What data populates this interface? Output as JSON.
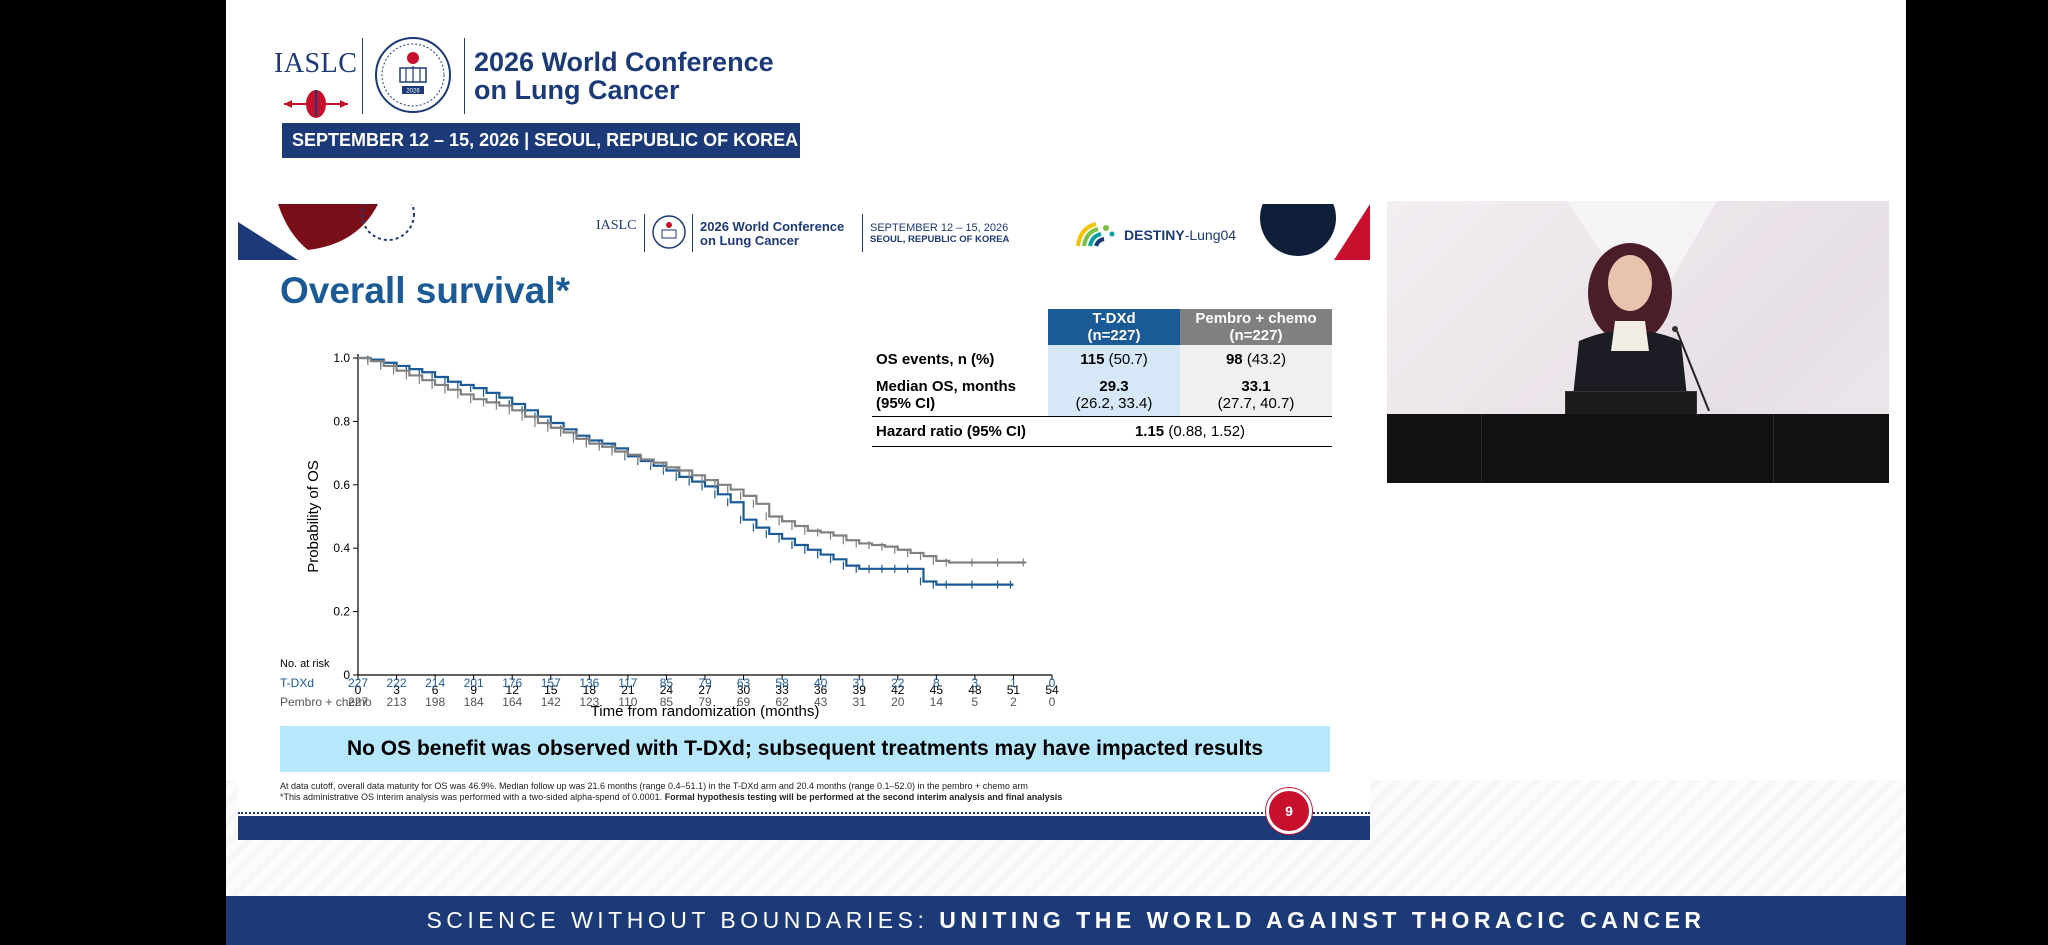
{
  "conference": {
    "org": "IASLC",
    "title": "2026 World Conference on Lung Cancer",
    "title_line1": "2026 World Conference",
    "title_line2": "on Lung Cancer",
    "dates": "SEPTEMBER 12 – 15, 2026  |  SEOUL, REPUBLIC OF KOREA",
    "seal_year": "2026"
  },
  "slide": {
    "header": {
      "org": "IASLC",
      "title_line1": "2026 World Conference",
      "title_line2": "on Lung Cancer",
      "dates_line1": "SEPTEMBER 12 – 15, 2026",
      "dates_line2": "SEOUL, REPUBLIC OF KOREA",
      "trial_bold": "DESTINY",
      "trial_rest": "-Lung04"
    },
    "title": "Overall survival*",
    "table": {
      "col_tdxd": "T-DXd",
      "col_tdxd_n": "(n=227)",
      "col_pembro": "Pembro + chemo",
      "col_pembro_n": "(n=227)",
      "rows": [
        {
          "label": "OS events, n (%)",
          "tdxd_bold": "115",
          "tdxd_rest": " (50.7)",
          "pembro_bold": "98",
          "pembro_rest": " (43.2)"
        },
        {
          "label1": "Median OS, months",
          "label2": "(95% CI)",
          "tdxd_bold": "29.3",
          "tdxd_rest": "(26.2, 33.4)",
          "pembro_bold": "33.1",
          "pembro_rest": "(27.7, 40.7)"
        }
      ],
      "hr_label": "Hazard ratio (95% CI)",
      "hr_bold": "1.15",
      "hr_rest": " (0.88, 1.52)"
    },
    "at_risk": {
      "title": "No. at risk",
      "tdxd_label": "T-DXd",
      "pembro_label": "Pembro + chemo",
      "tdxd": [
        "227",
        "222",
        "214",
        "201",
        "176",
        "157",
        "136",
        "117",
        "85",
        "79",
        "63",
        "58",
        "40",
        "31",
        "22",
        "8",
        "3",
        "1",
        "0"
      ],
      "pembro": [
        "227",
        "213",
        "198",
        "184",
        "164",
        "142",
        "123",
        "110",
        "85",
        "79",
        "69",
        "62",
        "43",
        "31",
        "20",
        "14",
        "5",
        "2",
        "0"
      ]
    },
    "banner": "No OS benefit was observed with T-DXd; subsequent treatments may have impacted results",
    "footnote1": "At data cutoff, overall data maturity for OS was 46.9%. Median follow up was 21.6 months (range 0.4–51.1) in the T-DXd arm and 20.4 months (range 0.1–52.0) in the pembro + chemo arm",
    "footnote2_a": "*This administrative OS interim analysis was performed with a two-sided alpha-spend of 0.0001. ",
    "footnote2_b": "Formal hypothesis testing will be performed at the second interim analysis and final analysis",
    "page_number": "9"
  },
  "tagline_light": "SCIENCE WITHOUT BOUNDARIES: ",
  "tagline_bold": "UNITING THE WORLD AGAINST THORACIC CANCER",
  "colors": {
    "navy": "#1d3a78",
    "tdxd_blue": "#1a5a96",
    "pembro_gray": "#808080",
    "banner_bg": "#b7e7fb",
    "accent_red": "#c8102e"
  },
  "chart_data": {
    "type": "line",
    "title": "",
    "xlabel": "Time from randomization (months)",
    "ylabel": "Probability of OS",
    "xlim": [
      0,
      54
    ],
    "ylim": [
      0,
      1.0
    ],
    "x_ticks": [
      "0",
      "3",
      "6",
      "9",
      "12",
      "15",
      "18",
      "21",
      "24",
      "27",
      "30",
      "33",
      "36",
      "39",
      "42",
      "45",
      "48",
      "51",
      "54"
    ],
    "y_ticks": [
      "0",
      "0.2",
      "0.4",
      "0.6",
      "0.8",
      "1.0"
    ],
    "grid": false,
    "step": true,
    "series": [
      {
        "name": "T-DXd",
        "color": "#1a5a96",
        "points": [
          [
            0,
            1.0
          ],
          [
            1,
            0.995
          ],
          [
            2,
            0.985
          ],
          [
            3,
            0.975
          ],
          [
            4,
            0.965
          ],
          [
            5,
            0.955
          ],
          [
            6,
            0.94
          ],
          [
            7,
            0.925
          ],
          [
            8,
            0.915
          ],
          [
            9,
            0.905
          ],
          [
            10,
            0.89
          ],
          [
            11,
            0.875
          ],
          [
            12,
            0.855
          ],
          [
            13,
            0.835
          ],
          [
            14,
            0.815
          ],
          [
            15,
            0.795
          ],
          [
            16,
            0.775
          ],
          [
            17,
            0.755
          ],
          [
            18,
            0.74
          ],
          [
            19,
            0.73
          ],
          [
            20,
            0.715
          ],
          [
            21,
            0.69
          ],
          [
            22,
            0.675
          ],
          [
            23,
            0.66
          ],
          [
            24,
            0.645
          ],
          [
            25,
            0.625
          ],
          [
            26,
            0.61
          ],
          [
            27,
            0.595
          ],
          [
            28,
            0.57
          ],
          [
            29,
            0.545
          ],
          [
            30,
            0.49
          ],
          [
            31,
            0.465
          ],
          [
            32,
            0.445
          ],
          [
            33,
            0.43
          ],
          [
            34,
            0.41
          ],
          [
            35,
            0.395
          ],
          [
            36,
            0.38
          ],
          [
            37,
            0.365
          ],
          [
            38,
            0.345
          ],
          [
            39,
            0.335
          ],
          [
            40,
            0.335
          ],
          [
            41,
            0.335
          ],
          [
            42,
            0.335
          ],
          [
            43,
            0.335
          ],
          [
            44,
            0.295
          ],
          [
            45,
            0.285
          ],
          [
            46,
            0.285
          ],
          [
            48,
            0.285
          ],
          [
            50,
            0.285
          ],
          [
            51,
            0.285
          ]
        ]
      },
      {
        "name": "Pembro + chemo",
        "color": "#808080",
        "points": [
          [
            0,
            1.0
          ],
          [
            1,
            0.99
          ],
          [
            2,
            0.975
          ],
          [
            3,
            0.96
          ],
          [
            4,
            0.945
          ],
          [
            5,
            0.93
          ],
          [
            6,
            0.915
          ],
          [
            7,
            0.9
          ],
          [
            8,
            0.885
          ],
          [
            9,
            0.87
          ],
          [
            10,
            0.86
          ],
          [
            11,
            0.85
          ],
          [
            12,
            0.835
          ],
          [
            13,
            0.815
          ],
          [
            14,
            0.795
          ],
          [
            15,
            0.78
          ],
          [
            16,
            0.765
          ],
          [
            17,
            0.745
          ],
          [
            18,
            0.73
          ],
          [
            19,
            0.72
          ],
          [
            20,
            0.705
          ],
          [
            21,
            0.695
          ],
          [
            22,
            0.68
          ],
          [
            23,
            0.67
          ],
          [
            24,
            0.655
          ],
          [
            25,
            0.645
          ],
          [
            26,
            0.63
          ],
          [
            27,
            0.615
          ],
          [
            28,
            0.6
          ],
          [
            29,
            0.585
          ],
          [
            30,
            0.565
          ],
          [
            31,
            0.54
          ],
          [
            32,
            0.5
          ],
          [
            33,
            0.485
          ],
          [
            34,
            0.47
          ],
          [
            35,
            0.455
          ],
          [
            36,
            0.45
          ],
          [
            37,
            0.44
          ],
          [
            38,
            0.425
          ],
          [
            39,
            0.415
          ],
          [
            40,
            0.41
          ],
          [
            41,
            0.405
          ],
          [
            42,
            0.395
          ],
          [
            43,
            0.385
          ],
          [
            44,
            0.375
          ],
          [
            45,
            0.36
          ],
          [
            46,
            0.355
          ],
          [
            48,
            0.355
          ],
          [
            50,
            0.355
          ],
          [
            52,
            0.355
          ]
        ]
      }
    ]
  }
}
